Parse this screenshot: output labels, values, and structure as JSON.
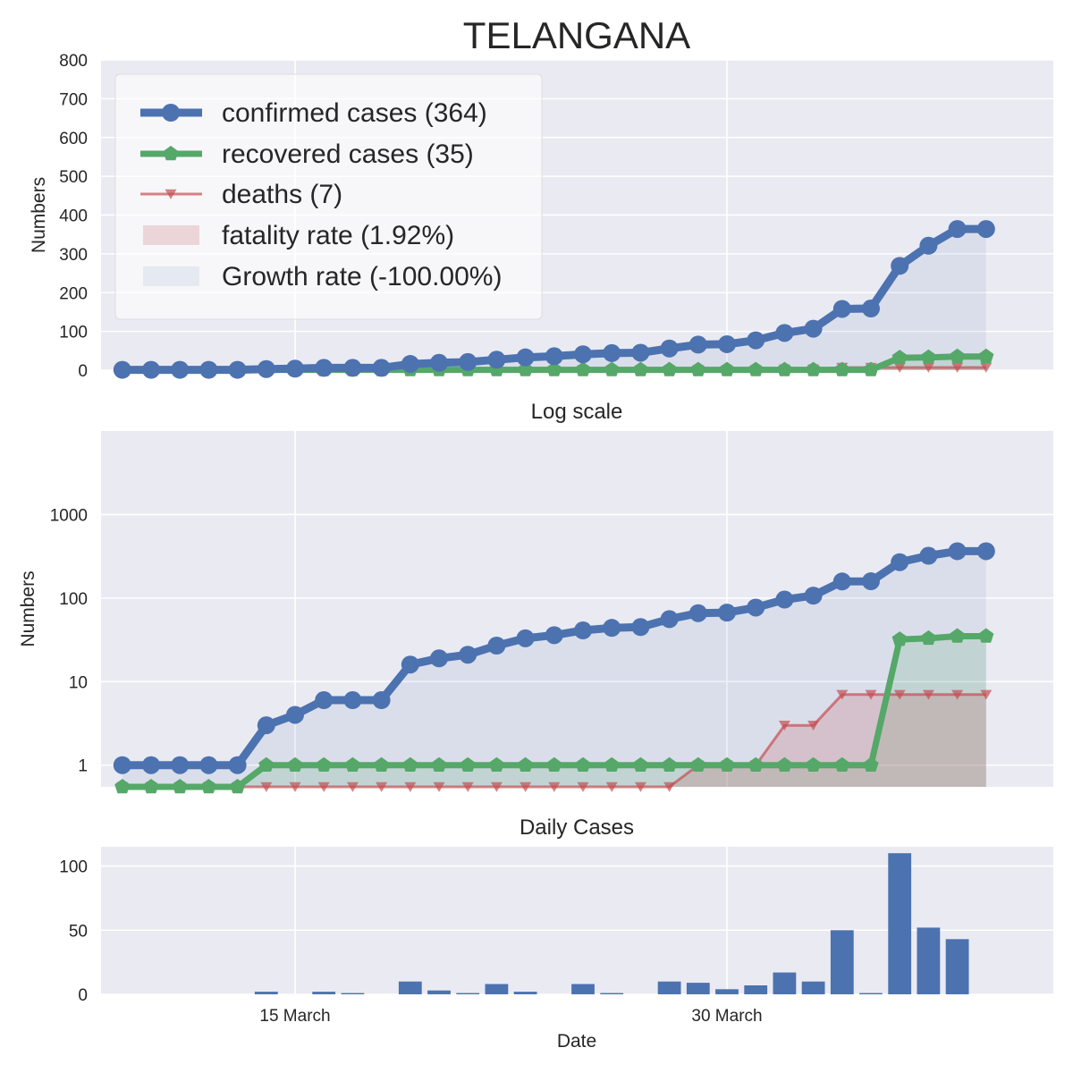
{
  "title": "TELANGANA",
  "colors": {
    "confirmed": "#4c72b0",
    "recovered": "#55a868",
    "deaths": "#c44e52",
    "panel_bg": "#eaeaf2",
    "grid": "#ffffff"
  },
  "x_axis": {
    "label": "Date",
    "ticks": [
      {
        "label": "15 March",
        "date": "2020-03-15"
      },
      {
        "label": "30 March",
        "date": "2020-03-30"
      }
    ]
  },
  "chart_data": [
    {
      "type": "line",
      "ylabel": "Numbers",
      "ylim": [
        0,
        800
      ],
      "yticks": [
        0,
        100,
        200,
        300,
        400,
        500,
        600,
        700,
        800
      ],
      "grid": true,
      "legend_position": "top-left",
      "legend": [
        "confirmed cases (364)",
        "recovered cases (35)",
        "deaths (7)",
        "fatality rate (1.92%)",
        "Growth rate (-100.00%)"
      ],
      "x": [
        "2020-03-09",
        "2020-03-10",
        "2020-03-11",
        "2020-03-12",
        "2020-03-13",
        "2020-03-14",
        "2020-03-15",
        "2020-03-16",
        "2020-03-17",
        "2020-03-18",
        "2020-03-19",
        "2020-03-20",
        "2020-03-21",
        "2020-03-22",
        "2020-03-23",
        "2020-03-24",
        "2020-03-25",
        "2020-03-26",
        "2020-03-27",
        "2020-03-28",
        "2020-03-29",
        "2020-03-30",
        "2020-03-31",
        "2020-04-01",
        "2020-04-02",
        "2020-04-03",
        "2020-04-04",
        "2020-04-05",
        "2020-04-06",
        "2020-04-07",
        "2020-04-08"
      ],
      "series": [
        {
          "name": "confirmed cases (364)",
          "values": [
            1,
            1,
            1,
            1,
            1,
            3,
            4,
            6,
            6,
            6,
            16,
            19,
            21,
            27,
            33,
            36,
            41,
            44,
            45,
            56,
            66,
            67,
            77,
            96,
            107,
            158,
            159,
            269,
            321,
            364,
            364
          ]
        },
        {
          "name": "recovered cases (35)",
          "values": [
            0,
            0,
            0,
            0,
            0,
            1,
            1,
            1,
            1,
            1,
            1,
            1,
            1,
            1,
            1,
            1,
            1,
            1,
            1,
            1,
            1,
            1,
            1,
            1,
            1,
            1,
            1,
            32,
            33,
            35,
            35
          ]
        },
        {
          "name": "deaths (7)",
          "values": [
            0,
            0,
            0,
            0,
            0,
            0,
            0,
            0,
            0,
            0,
            0,
            0,
            0,
            0,
            0,
            0,
            0,
            0,
            0,
            0,
            1,
            1,
            1,
            3,
            3,
            7,
            7,
            7,
            7,
            7,
            7
          ]
        }
      ]
    },
    {
      "type": "line",
      "title": "Log scale",
      "ylabel": "Numbers",
      "yscale": "log",
      "ylim": [
        0.55,
        10000
      ],
      "yticks": [
        1,
        10,
        100,
        1000
      ],
      "grid": true,
      "series_ref": "same as chart_data[0].series"
    },
    {
      "type": "bar",
      "title": "Daily Cases",
      "xlabel": "Date",
      "ylim": [
        0,
        115
      ],
      "yticks": [
        0,
        50,
        100
      ],
      "grid": true,
      "x": [
        "2020-03-09",
        "2020-03-10",
        "2020-03-11",
        "2020-03-12",
        "2020-03-13",
        "2020-03-14",
        "2020-03-15",
        "2020-03-16",
        "2020-03-17",
        "2020-03-18",
        "2020-03-19",
        "2020-03-20",
        "2020-03-21",
        "2020-03-22",
        "2020-03-23",
        "2020-03-24",
        "2020-03-25",
        "2020-03-26",
        "2020-03-27",
        "2020-03-28",
        "2020-03-29",
        "2020-03-30",
        "2020-03-31",
        "2020-04-01",
        "2020-04-02",
        "2020-04-03",
        "2020-04-04",
        "2020-04-05",
        "2020-04-06",
        "2020-04-07",
        "2020-04-08"
      ],
      "values": [
        0,
        0,
        0,
        0,
        0,
        2,
        0,
        2,
        1,
        0,
        10,
        3,
        1,
        8,
        2,
        0,
        8,
        1,
        0,
        10,
        9,
        4,
        7,
        17,
        10,
        50,
        1,
        110,
        52,
        43,
        0
      ]
    }
  ]
}
